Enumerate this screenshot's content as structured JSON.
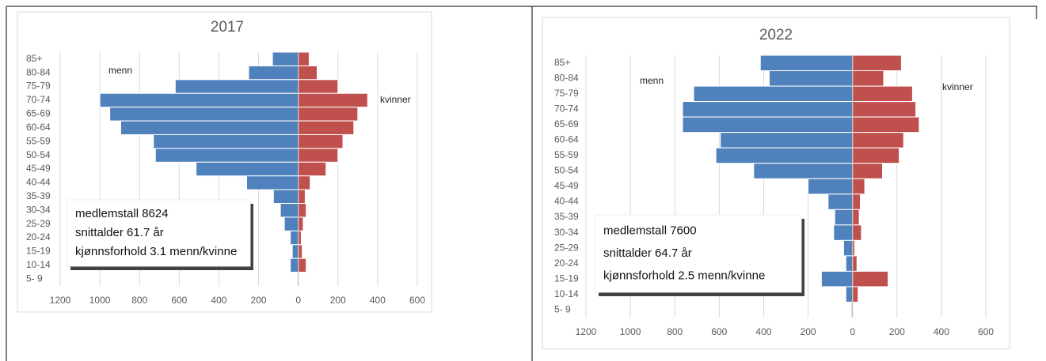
{
  "chart_data": [
    {
      "type": "pyramid",
      "title": "2017",
      "categories": [
        "85+",
        "80-84",
        "75-79",
        "70-74",
        "65-69",
        "60-64",
        "55-59",
        "50-54",
        "45-49",
        "40-44",
        "35-39",
        "30-34",
        "25-29",
        "20-24",
        "15-19",
        "10-14",
        "5- 9"
      ],
      "series": [
        {
          "name": "menn",
          "color": "#4f81bd",
          "values": [
            -130,
            -250,
            -620,
            -1000,
            -950,
            -895,
            -730,
            -720,
            -515,
            -260,
            -125,
            -90,
            -70,
            -40,
            -30,
            -40,
            -5
          ]
        },
        {
          "name": "kvinner",
          "color": "#c0504d",
          "values": [
            55,
            95,
            200,
            350,
            300,
            280,
            225,
            200,
            140,
            60,
            35,
            40,
            25,
            15,
            20,
            40,
            0
          ]
        }
      ],
      "xlim": [
        -1200,
        600
      ],
      "xticks": [
        {
          "value": -1200,
          "label": "1200"
        },
        {
          "value": -1000,
          "label": "1000"
        },
        {
          "value": -800,
          "label": "800"
        },
        {
          "value": -600,
          "label": "600"
        },
        {
          "value": -400,
          "label": "400"
        },
        {
          "value": -200,
          "label": "200"
        },
        0,
        200,
        400,
        600
      ],
      "grid": true,
      "annotations": [
        "medlemstall 8624",
        "snittalder 61.7 år",
        "kjønnsforhold 3.1 menn/kvinne"
      ]
    },
    {
      "type": "pyramid",
      "title": "2022",
      "categories": [
        "85+",
        "80-84",
        "75-79",
        "70-74",
        "65-69",
        "60-64",
        "55-59",
        "50-54",
        "45-49",
        "40-44",
        "35-39",
        "30-34",
        "25-29",
        "20-24",
        "15-19",
        "10-14",
        "5- 9"
      ],
      "series": [
        {
          "name": "menn",
          "color": "#4f81bd",
          "values": [
            -415,
            -375,
            -715,
            -765,
            -765,
            -595,
            -615,
            -445,
            -200,
            -110,
            -80,
            -85,
            -40,
            -30,
            -140,
            -30,
            -5
          ]
        },
        {
          "name": "kvinner",
          "color": "#c0504d",
          "values": [
            220,
            140,
            270,
            285,
            300,
            230,
            210,
            135,
            55,
            35,
            30,
            40,
            10,
            20,
            160,
            25,
            0
          ]
        }
      ],
      "xlim": [
        -1200,
        600
      ],
      "xticks": [
        {
          "value": -1200,
          "label": "1200"
        },
        {
          "value": -1000,
          "label": "1000"
        },
        {
          "value": -800,
          "label": "800"
        },
        {
          "value": -600,
          "label": "600"
        },
        {
          "value": -400,
          "label": "400"
        },
        {
          "value": -200,
          "label": "200"
        },
        0,
        200,
        400,
        600
      ],
      "grid": true,
      "annotations": [
        "medlemstall 7600",
        "snittalder 64.7 år",
        "kjønnsforhold 2.5 menn/kvinne"
      ]
    }
  ]
}
